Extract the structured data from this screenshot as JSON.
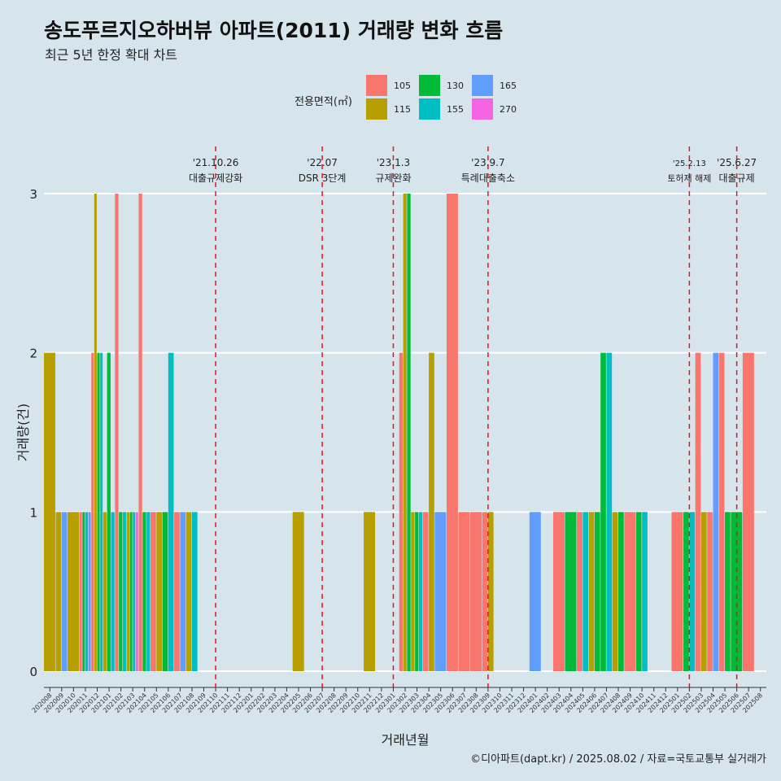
{
  "title": "송도푸르지오하버뷰 아파트(2011) 거래량 변화 흐름",
  "subtitle": "최근 5년 한정 확대 차트",
  "caption": "©디아파트(dapt.kr) / 2025.08.02 / 자료=국토교통부 실거래가",
  "chart_data": {
    "type": "bar",
    "stacked": false,
    "xlabel": "거래년월",
    "ylabel": "거래량(건)",
    "ylim": [
      0,
      3
    ],
    "yticks": [
      0,
      1,
      2,
      3
    ],
    "grid": true,
    "legend": {
      "title": "전용면적(㎡)",
      "placement": "top",
      "entries": [
        {
          "name": "105",
          "color": "#F8766D"
        },
        {
          "name": "115",
          "color": "#B79F00"
        },
        {
          "name": "130",
          "color": "#00BA38"
        },
        {
          "name": "155",
          "color": "#00BFC4"
        },
        {
          "name": "165",
          "color": "#619CFF"
        },
        {
          "name": "270",
          "color": "#F564E3"
        }
      ]
    },
    "categories": [
      "202008",
      "202009",
      "202010",
      "202011",
      "202012",
      "202101",
      "202102",
      "202103",
      "202104",
      "202105",
      "202106",
      "202107",
      "202108",
      "202109",
      "202110",
      "202111",
      "202112",
      "202201",
      "202202",
      "202203",
      "202204",
      "202205",
      "202206",
      "202207",
      "202208",
      "202209",
      "202210",
      "202211",
      "202212",
      "202301",
      "202302",
      "202303",
      "202304",
      "202305",
      "202306",
      "202307",
      "202308",
      "202309",
      "202310",
      "202311",
      "202312",
      "202401",
      "202402",
      "202403",
      "202404",
      "202405",
      "202406",
      "202407",
      "202408",
      "202409",
      "202410",
      "202411",
      "202412",
      "202501",
      "202502",
      "202503",
      "202504",
      "202505",
      "202506",
      "202507",
      "202508"
    ],
    "data": [
      {
        "month": "202008",
        "values": {
          "115": 2
        }
      },
      {
        "month": "202009",
        "values": {
          "115": 1,
          "165": 1
        }
      },
      {
        "month": "202010",
        "values": {
          "115": 1
        }
      },
      {
        "month": "202011",
        "values": {
          "105": 1,
          "130": 1,
          "155": 1,
          "165": 1
        }
      },
      {
        "month": "202012",
        "values": {
          "105": 2,
          "115": 3,
          "130": 2,
          "155": 2
        }
      },
      {
        "month": "202101",
        "values": {
          "115": 1,
          "130": 2,
          "155": 1
        }
      },
      {
        "month": "202102",
        "values": {
          "105": 3,
          "130": 1,
          "155": 1
        }
      },
      {
        "month": "202103",
        "values": {
          "115": 1,
          "130": 1,
          "155": 1,
          "270": 1
        }
      },
      {
        "month": "202104",
        "values": {
          "105": 3,
          "130": 1,
          "155": 1
        }
      },
      {
        "month": "202105",
        "values": {
          "105": 1,
          "115": 1
        }
      },
      {
        "month": "202106",
        "values": {
          "130": 1,
          "155": 2
        }
      },
      {
        "month": "202107",
        "values": {
          "105": 1,
          "165": 1
        }
      },
      {
        "month": "202108",
        "values": {
          "115": 1,
          "155": 1
        }
      },
      {
        "month": "202205",
        "values": {
          "115": 1
        }
      },
      {
        "month": "202211",
        "values": {
          "115": 1
        }
      },
      {
        "month": "202302",
        "values": {
          "105": 2,
          "115": 3,
          "130": 3
        }
      },
      {
        "month": "202303",
        "values": {
          "115": 1,
          "130": 1,
          "155": 1
        }
      },
      {
        "month": "202304",
        "values": {
          "105": 1,
          "115": 2
        }
      },
      {
        "month": "202305",
        "values": {
          "165": 1
        }
      },
      {
        "month": "202306",
        "values": {
          "105": 3
        }
      },
      {
        "month": "202307",
        "values": {
          "105": 1
        }
      },
      {
        "month": "202308",
        "values": {
          "105": 1
        }
      },
      {
        "month": "202309",
        "values": {
          "105": 1,
          "115": 1
        }
      },
      {
        "month": "202401",
        "values": {
          "165": 1
        }
      },
      {
        "month": "202403",
        "values": {
          "105": 1
        }
      },
      {
        "month": "202404",
        "values": {
          "130": 1
        }
      },
      {
        "month": "202405",
        "values": {
          "105": 1,
          "155": 1
        }
      },
      {
        "month": "202406",
        "values": {
          "115": 1,
          "130": 1
        }
      },
      {
        "month": "202407",
        "values": {
          "130": 2,
          "155": 2
        }
      },
      {
        "month": "202408",
        "values": {
          "115": 1,
          "130": 1
        }
      },
      {
        "month": "202409",
        "values": {
          "105": 1
        }
      },
      {
        "month": "202410",
        "values": {
          "130": 1,
          "155": 1
        }
      },
      {
        "month": "202501",
        "values": {
          "105": 1
        }
      },
      {
        "month": "202502",
        "values": {
          "130": 1,
          "155": 1
        }
      },
      {
        "month": "202503",
        "values": {
          "105": 2,
          "115": 1
        }
      },
      {
        "month": "202504",
        "values": {
          "105": 1,
          "165": 2
        }
      },
      {
        "month": "202505",
        "values": {
          "105": 2,
          "130": 1
        }
      },
      {
        "month": "202506",
        "values": {
          "130": 1
        }
      },
      {
        "month": "202507",
        "values": {
          "105": 2
        }
      }
    ],
    "annotations": [
      {
        "month": "202110",
        "date": "'21.10.26",
        "text": "대출규제강화"
      },
      {
        "month": "202207",
        "date": "'22.07",
        "text": "DSR 3단계"
      },
      {
        "month": "202301",
        "date": "'23.1.3",
        "text": "규제완화"
      },
      {
        "month": "202309",
        "date": "'23.9.7",
        "text": "특례대출축소"
      },
      {
        "month": "202502",
        "date": "'25.2.13",
        "text": "토허제 해제"
      },
      {
        "month": "202506",
        "date": "'25.6.27",
        "text": "대출규제"
      }
    ]
  }
}
